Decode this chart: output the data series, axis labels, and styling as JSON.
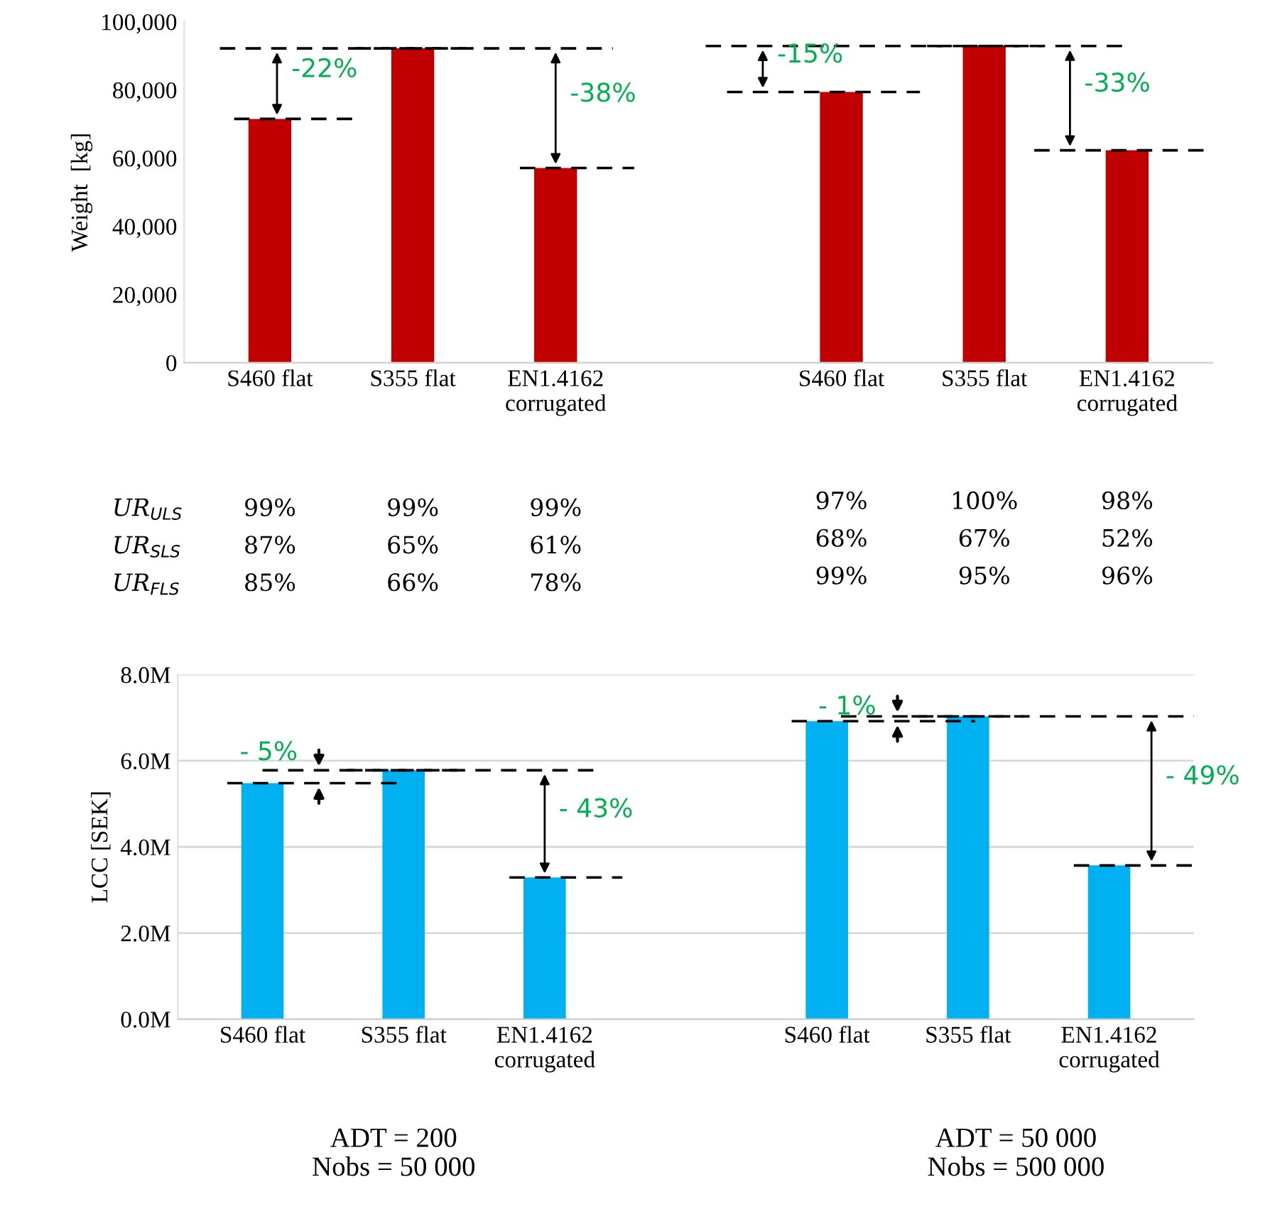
{
  "chart_data": [
    {
      "type": "bar",
      "ylabel": "Weight  [kg]",
      "categories": [
        "S460 flat",
        "S355 flat",
        "EN1.4162\ncorrugated",
        null,
        "S460 flat",
        "S355 flat",
        "EN1.4162\ncorrugated"
      ],
      "values": [
        71500,
        92200,
        57100,
        null,
        79400,
        92900,
        62300
      ],
      "color": "#c00000",
      "ylim": [
        0,
        100000
      ],
      "yticks": [
        {
          "value": 0,
          "label": "0"
        },
        {
          "value": 20000,
          "label": "20,000"
        },
        {
          "value": 40000,
          "label": "40,000"
        },
        {
          "value": 60000,
          "label": "60,000"
        },
        {
          "value": 80000,
          "label": "80,000"
        },
        {
          "value": 100000,
          "label": "100,000"
        }
      ],
      "grid": false,
      "annotations": [
        "-22%",
        "-38%",
        "-15%",
        "-33%",
        "UR$_{ULS}$",
        "99%",
        "99%",
        "99%",
        "97%",
        "100%",
        "98%",
        "UR$_{SLS}$",
        "87%",
        "65%",
        "61%",
        "68%",
        "67%",
        "52%",
        "UR$_{FLS}$",
        "85%",
        "66%",
        "78%",
        "99%",
        "95%",
        "96%"
      ]
    },
    {
      "type": "bar",
      "ylabel": "LCC [SEK]",
      "categories": [
        "S460 flat",
        "S355 flat",
        "EN1.4162\ncorrugated",
        null,
        "S460 flat",
        "S355 flat",
        "EN1.4162\ncorrugated"
      ],
      "values": [
        5.48,
        5.78,
        3.29,
        null,
        6.92,
        7.03,
        3.57
      ],
      "color": "#00b0f0",
      "ylim": [
        0,
        8
      ],
      "yticks": [
        {
          "value": 0,
          "label": "0.0M"
        },
        {
          "value": 2,
          "label": "2.0M"
        },
        {
          "value": 4,
          "label": "4.0M"
        },
        {
          "value": 6,
          "label": "6.0M"
        },
        {
          "value": 8,
          "label": "8.0M"
        }
      ],
      "grid": "y",
      "annotations": [
        "- 5%",
        "- 43%",
        {
          "text": "- 1%",
          "y": 6.92
        },
        "- 49%",
        "ADT = 200\nNobs = 50 000",
        "ADT = 50 000\nNobs = 500 000"
      ]
    }
  ]
}
